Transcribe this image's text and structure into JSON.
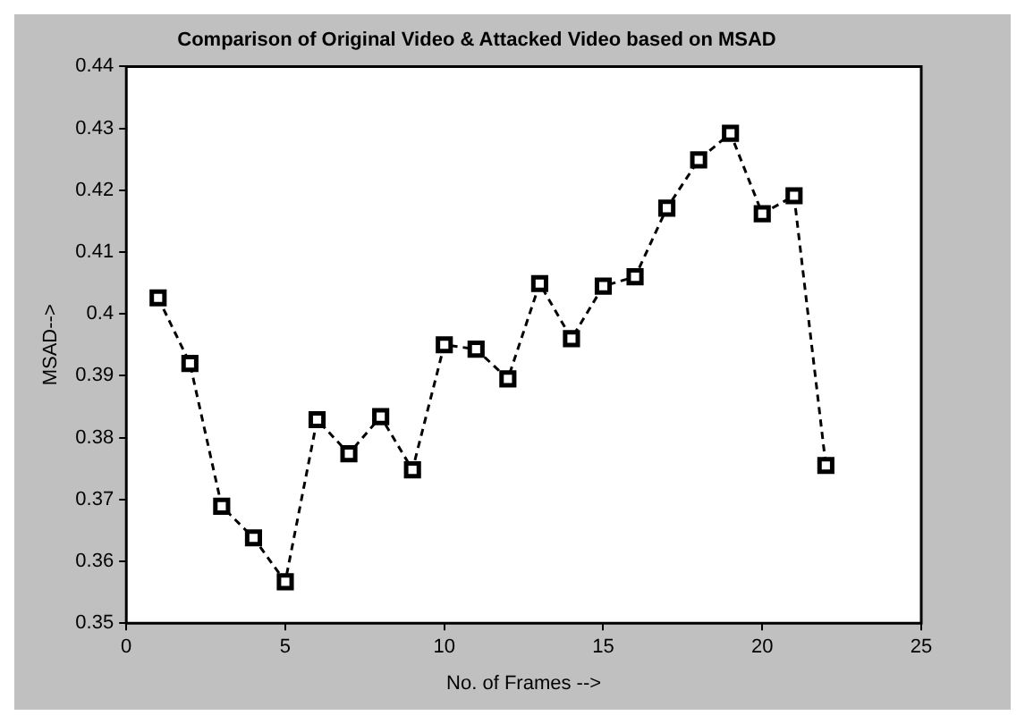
{
  "chart_data": {
    "type": "line",
    "title": "Comparison of Original Video & Attacked Video based on MSAD",
    "xlabel": "No. of Frames -->",
    "ylabel": "MSAD-->",
    "x": [
      1,
      2,
      3,
      4,
      5,
      6,
      7,
      8,
      9,
      10,
      11,
      12,
      13,
      14,
      15,
      16,
      17,
      18,
      19,
      20,
      21,
      22
    ],
    "series": [
      {
        "color": "#000000",
        "values": [
          0.4026,
          0.392,
          0.3689,
          0.3638,
          0.3567,
          0.3829,
          0.3774,
          0.3834,
          0.3748,
          0.395,
          0.3943,
          0.3895,
          0.4049,
          0.396,
          0.4045,
          0.406,
          0.4171,
          0.4249,
          0.4292,
          0.4162,
          0.4191,
          0.3755
        ]
      }
    ],
    "xlim": [
      0,
      25
    ],
    "xticks": [
      0,
      5,
      10,
      15,
      20,
      25
    ],
    "ylim": [
      0.35,
      0.44
    ],
    "yticks": [
      0.35,
      0.36,
      0.37,
      0.38,
      0.39,
      0.4,
      0.41,
      0.42,
      0.43,
      0.44
    ],
    "marker": "square",
    "line_style": "dashed",
    "grid": false,
    "legend": false
  }
}
